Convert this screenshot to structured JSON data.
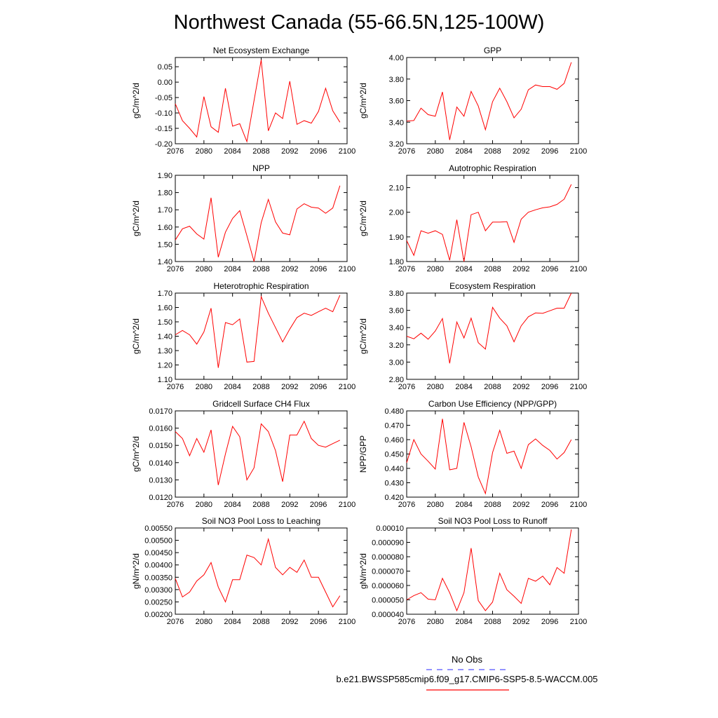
{
  "figure": {
    "title": "Northwest Canada (55-66.5N,125-100W)",
    "line_color": "#ff0000",
    "legend": [
      {
        "label": "No Obs",
        "style": "dashed",
        "color": "#5555ff"
      },
      {
        "label": "b.e21.BWSSP585cmip6.f09_g17.CMIP6-SSP5-8.5-WACCM.005",
        "style": "solid",
        "color": "#ff0000"
      }
    ]
  },
  "chart_data": [
    {
      "type": "line",
      "title": "Net Ecosystem Exchange",
      "ylabel": "gC/m^2/d",
      "xlim": [
        2076,
        2100
      ],
      "ylim": [
        -0.2,
        0.08
      ],
      "yticks": [
        0.05,
        0.0,
        -0.05,
        -0.1,
        -0.15,
        -0.2
      ],
      "ytick_labels": [
        "0.05",
        "0.00",
        "-0.05",
        "-0.10",
        "-0.15",
        "-0.20"
      ],
      "xticks": [
        2076,
        2080,
        2084,
        2088,
        2092,
        2096,
        2100
      ],
      "xtick_labels": [
        "2076",
        "2080",
        "2084",
        "2088",
        "2092",
        "2096",
        "2100"
      ],
      "x": [
        2076,
        2077,
        2078,
        2079,
        2080,
        2081,
        2082,
        2083,
        2084,
        2085,
        2086,
        2087,
        2088,
        2089,
        2090,
        2091,
        2092,
        2093,
        2094,
        2095,
        2096,
        2097,
        2098,
        2099
      ],
      "values": [
        -0.07,
        -0.125,
        -0.15,
        -0.178,
        -0.047,
        -0.145,
        -0.163,
        -0.02,
        -0.143,
        -0.135,
        -0.193,
        -0.06,
        0.072,
        -0.158,
        -0.1,
        -0.118,
        0.003,
        -0.137,
        -0.125,
        -0.133,
        -0.095,
        -0.02,
        -0.093,
        -0.13
      ]
    },
    {
      "type": "line",
      "title": "GPP",
      "ylabel": "gC/m^2/d",
      "xlim": [
        2076,
        2100
      ],
      "ylim": [
        3.2,
        4.0
      ],
      "yticks": [
        3.2,
        3.4,
        3.6,
        3.8,
        4.0
      ],
      "ytick_labels": [
        "3.20",
        "3.40",
        "3.60",
        "3.80",
        "4.00"
      ],
      "xticks": [
        2076,
        2080,
        2084,
        2088,
        2092,
        2096,
        2100
      ],
      "xtick_labels": [
        "2076",
        "2080",
        "2084",
        "2088",
        "2092",
        "2096",
        "2100"
      ],
      "x": [
        2076,
        2077,
        2078,
        2079,
        2080,
        2081,
        2082,
        2083,
        2084,
        2085,
        2086,
        2087,
        2088,
        2089,
        2090,
        2091,
        2092,
        2093,
        2094,
        2095,
        2096,
        2097,
        2098,
        2099
      ],
      "values": [
        3.41,
        3.415,
        3.53,
        3.47,
        3.455,
        3.68,
        3.235,
        3.54,
        3.455,
        3.685,
        3.55,
        3.33,
        3.59,
        3.715,
        3.59,
        3.44,
        3.52,
        3.7,
        3.745,
        3.73,
        3.73,
        3.705,
        3.76,
        3.955
      ]
    },
    {
      "type": "line",
      "title": "NPP",
      "ylabel": "gC/m^2/d",
      "xlim": [
        2076,
        2100
      ],
      "ylim": [
        1.4,
        1.9
      ],
      "yticks": [
        1.4,
        1.5,
        1.6,
        1.7,
        1.8,
        1.9
      ],
      "ytick_labels": [
        "1.40",
        "1.50",
        "1.60",
        "1.70",
        "1.80",
        "1.90"
      ],
      "xticks": [
        2076,
        2080,
        2084,
        2088,
        2092,
        2096,
        2100
      ],
      "xtick_labels": [
        "2076",
        "2080",
        "2084",
        "2088",
        "2092",
        "2096",
        "2100"
      ],
      "x": [
        2076,
        2077,
        2078,
        2079,
        2080,
        2081,
        2082,
        2083,
        2084,
        2085,
        2086,
        2087,
        2088,
        2089,
        2090,
        2091,
        2092,
        2093,
        2094,
        2095,
        2096,
        2097,
        2098,
        2099
      ],
      "values": [
        1.525,
        1.59,
        1.605,
        1.56,
        1.53,
        1.77,
        1.425,
        1.57,
        1.65,
        1.695,
        1.55,
        1.4,
        1.625,
        1.76,
        1.63,
        1.565,
        1.555,
        1.705,
        1.735,
        1.715,
        1.71,
        1.68,
        1.71,
        1.84
      ]
    },
    {
      "type": "line",
      "title": "Autotrophic Respiration",
      "ylabel": "gC/m^2/d",
      "xlim": [
        2076,
        2100
      ],
      "ylim": [
        1.8,
        2.15
      ],
      "yticks": [
        1.8,
        1.9,
        2.0,
        2.1
      ],
      "ytick_labels": [
        "1.80",
        "1.90",
        "2.00",
        "2.10"
      ],
      "xticks": [
        2076,
        2080,
        2084,
        2088,
        2092,
        2096,
        2100
      ],
      "xtick_labels": [
        "2076",
        "2080",
        "2084",
        "2088",
        "2092",
        "2096",
        "2100"
      ],
      "x": [
        2076,
        2077,
        2078,
        2079,
        2080,
        2081,
        2082,
        2083,
        2084,
        2085,
        2086,
        2087,
        2088,
        2089,
        2090,
        2091,
        2092,
        2093,
        2094,
        2095,
        2096,
        2097,
        2098,
        2099
      ],
      "values": [
        1.885,
        1.825,
        1.925,
        1.915,
        1.925,
        1.91,
        1.805,
        1.97,
        1.8,
        1.99,
        2.0,
        1.925,
        1.96,
        1.96,
        1.962,
        1.878,
        1.972,
        2.0,
        2.01,
        2.018,
        2.022,
        2.032,
        2.053,
        2.113
      ]
    },
    {
      "type": "line",
      "title": "Heterotrophic Respiration",
      "ylabel": "gC/m^2/d",
      "xlim": [
        2076,
        2100
      ],
      "ylim": [
        1.1,
        1.7
      ],
      "yticks": [
        1.1,
        1.2,
        1.3,
        1.4,
        1.5,
        1.6,
        1.7
      ],
      "ytick_labels": [
        "1.10",
        "1.20",
        "1.30",
        "1.40",
        "1.50",
        "1.60",
        "1.70"
      ],
      "xticks": [
        2076,
        2080,
        2084,
        2088,
        2092,
        2096,
        2100
      ],
      "xtick_labels": [
        "2076",
        "2080",
        "2084",
        "2088",
        "2092",
        "2096",
        "2100"
      ],
      "x": [
        2076,
        2077,
        2078,
        2079,
        2080,
        2081,
        2082,
        2083,
        2084,
        2085,
        2086,
        2087,
        2088,
        2089,
        2090,
        2091,
        2092,
        2093,
        2094,
        2095,
        2096,
        2097,
        2098,
        2099
      ],
      "values": [
        1.41,
        1.44,
        1.41,
        1.345,
        1.43,
        1.595,
        1.18,
        1.495,
        1.48,
        1.52,
        1.22,
        1.225,
        1.675,
        1.56,
        1.46,
        1.36,
        1.45,
        1.53,
        1.56,
        1.545,
        1.57,
        1.595,
        1.57,
        1.685
      ]
    },
    {
      "type": "line",
      "title": "Ecosystem Respiration",
      "ylabel": "gC/m^2/d",
      "xlim": [
        2076,
        2100
      ],
      "ylim": [
        2.8,
        3.8
      ],
      "yticks": [
        2.8,
        3.0,
        3.2,
        3.4,
        3.6,
        3.8
      ],
      "ytick_labels": [
        "2.80",
        "3.00",
        "3.20",
        "3.40",
        "3.60",
        "3.80"
      ],
      "xticks": [
        2076,
        2080,
        2084,
        2088,
        2092,
        2096,
        2100
      ],
      "xtick_labels": [
        "2076",
        "2080",
        "2084",
        "2088",
        "2092",
        "2096",
        "2100"
      ],
      "x": [
        2076,
        2077,
        2078,
        2079,
        2080,
        2081,
        2082,
        2083,
        2084,
        2085,
        2086,
        2087,
        2088,
        2089,
        2090,
        2091,
        2092,
        2093,
        2094,
        2095,
        2096,
        2097,
        2098,
        2099
      ],
      "values": [
        3.3,
        3.27,
        3.335,
        3.265,
        3.36,
        3.505,
        2.985,
        3.465,
        3.28,
        3.51,
        3.225,
        3.15,
        3.635,
        3.51,
        3.42,
        3.235,
        3.42,
        3.525,
        3.57,
        3.565,
        3.595,
        3.625,
        3.625,
        3.8
      ]
    },
    {
      "type": "line",
      "title": "Gridcell Surface CH4 Flux",
      "ylabel": "gC/m^2/d",
      "xlim": [
        2076,
        2100
      ],
      "ylim": [
        0.012,
        0.017
      ],
      "yticks": [
        0.012,
        0.013,
        0.014,
        0.015,
        0.016,
        0.017
      ],
      "ytick_labels": [
        "0.0120",
        "0.0130",
        "0.0140",
        "0.0150",
        "0.0160",
        "0.0170"
      ],
      "xticks": [
        2076,
        2080,
        2084,
        2088,
        2092,
        2096,
        2100
      ],
      "xtick_labels": [
        "2076",
        "2080",
        "2084",
        "2088",
        "2092",
        "2096",
        "2100"
      ],
      "x": [
        2076,
        2077,
        2078,
        2079,
        2080,
        2081,
        2082,
        2083,
        2084,
        2085,
        2086,
        2087,
        2088,
        2089,
        2090,
        2091,
        2092,
        2093,
        2094,
        2095,
        2096,
        2097,
        2098,
        2099
      ],
      "values": [
        0.0158,
        0.0154,
        0.0144,
        0.0154,
        0.0146,
        0.0159,
        0.0127,
        0.0145,
        0.0161,
        0.0155,
        0.013,
        0.0137,
        0.01625,
        0.0158,
        0.0147,
        0.0129,
        0.0156,
        0.0156,
        0.0164,
        0.0154,
        0.015,
        0.0149,
        0.0151,
        0.0153
      ]
    },
    {
      "type": "line",
      "title": "Carbon Use Efficiency (NPP/GPP)",
      "ylabel": "NPP/GPP",
      "xlim": [
        2076,
        2100
      ],
      "ylim": [
        0.42,
        0.48
      ],
      "yticks": [
        0.42,
        0.43,
        0.44,
        0.45,
        0.46,
        0.47,
        0.48
      ],
      "ytick_labels": [
        "0.420",
        "0.430",
        "0.440",
        "0.450",
        "0.460",
        "0.470",
        "0.480"
      ],
      "xticks": [
        2076,
        2080,
        2084,
        2088,
        2092,
        2096,
        2100
      ],
      "xtick_labels": [
        "2076",
        "2080",
        "2084",
        "2088",
        "2092",
        "2096",
        "2100"
      ],
      "x": [
        2076,
        2077,
        2078,
        2079,
        2080,
        2081,
        2082,
        2083,
        2084,
        2085,
        2086,
        2087,
        2088,
        2089,
        2090,
        2091,
        2092,
        2093,
        2094,
        2095,
        2096,
        2097,
        2098,
        2099
      ],
      "values": [
        0.444,
        0.46,
        0.45,
        0.445,
        0.4395,
        0.4745,
        0.439,
        0.44,
        0.472,
        0.455,
        0.434,
        0.4225,
        0.451,
        0.4665,
        0.4505,
        0.452,
        0.44,
        0.4565,
        0.4605,
        0.456,
        0.4525,
        0.4465,
        0.451,
        0.46
      ]
    },
    {
      "type": "line",
      "title": "Soil NO3 Pool Loss to Leaching",
      "ylabel": "gN/m^2/d",
      "xlim": [
        2076,
        2100
      ],
      "ylim": [
        0.002,
        0.0055
      ],
      "yticks": [
        0.002,
        0.0025,
        0.003,
        0.0035,
        0.004,
        0.0045,
        0.005,
        0.0055
      ],
      "ytick_labels": [
        "0.00200",
        "0.00250",
        "0.00300",
        "0.00350",
        "0.00400",
        "0.00450",
        "0.00500",
        "0.00550"
      ],
      "xticks": [
        2076,
        2080,
        2084,
        2088,
        2092,
        2096,
        2100
      ],
      "xtick_labels": [
        "2076",
        "2080",
        "2084",
        "2088",
        "2092",
        "2096",
        "2100"
      ],
      "x": [
        2076,
        2077,
        2078,
        2079,
        2080,
        2081,
        2082,
        2083,
        2084,
        2085,
        2086,
        2087,
        2088,
        2089,
        2090,
        2091,
        2092,
        2093,
        2094,
        2095,
        2096,
        2097,
        2098,
        2099
      ],
      "values": [
        0.00345,
        0.0027,
        0.0029,
        0.00335,
        0.0036,
        0.0041,
        0.0031,
        0.0025,
        0.0034,
        0.0034,
        0.0044,
        0.0043,
        0.004,
        0.00505,
        0.0039,
        0.0036,
        0.0039,
        0.0037,
        0.0042,
        0.0035,
        0.0035,
        0.0029,
        0.0023,
        0.00275
      ]
    },
    {
      "type": "line",
      "title": "Soil NO3 Pool Loss to Runoff",
      "ylabel": "gN/m^2/d",
      "xlim": [
        2076,
        2100
      ],
      "ylim": [
        4e-05,
        0.0001
      ],
      "yticks": [
        4e-05,
        5e-05,
        6e-05,
        7e-05,
        8e-05,
        9e-05,
        0.0001
      ],
      "ytick_labels": [
        "0.000040",
        "0.000050",
        "0.000060",
        "0.000070",
        "0.000080",
        "0.000090",
        "0.00010"
      ],
      "xticks": [
        2076,
        2080,
        2084,
        2088,
        2092,
        2096,
        2100
      ],
      "xtick_labels": [
        "2076",
        "2080",
        "2084",
        "2088",
        "2092",
        "2096",
        "2100"
      ],
      "x": [
        2076,
        2077,
        2078,
        2079,
        2080,
        2081,
        2082,
        2083,
        2084,
        2085,
        2086,
        2087,
        2088,
        2089,
        2090,
        2091,
        2092,
        2093,
        2094,
        2095,
        2096,
        2097,
        2098,
        2099
      ],
      "values": [
        5e-05,
        5.3e-05,
        5.5e-05,
        5.05e-05,
        5e-05,
        6.5e-05,
        5.5e-05,
        4.25e-05,
        5.5e-05,
        8.6e-05,
        4.95e-05,
        4.25e-05,
        4.85e-05,
        6.85e-05,
        5.7e-05,
        5.25e-05,
        4.75e-05,
        6.5e-05,
        6.3e-05,
        6.65e-05,
        6.05e-05,
        7.25e-05,
        6.85e-05,
        9.9e-05
      ]
    }
  ]
}
